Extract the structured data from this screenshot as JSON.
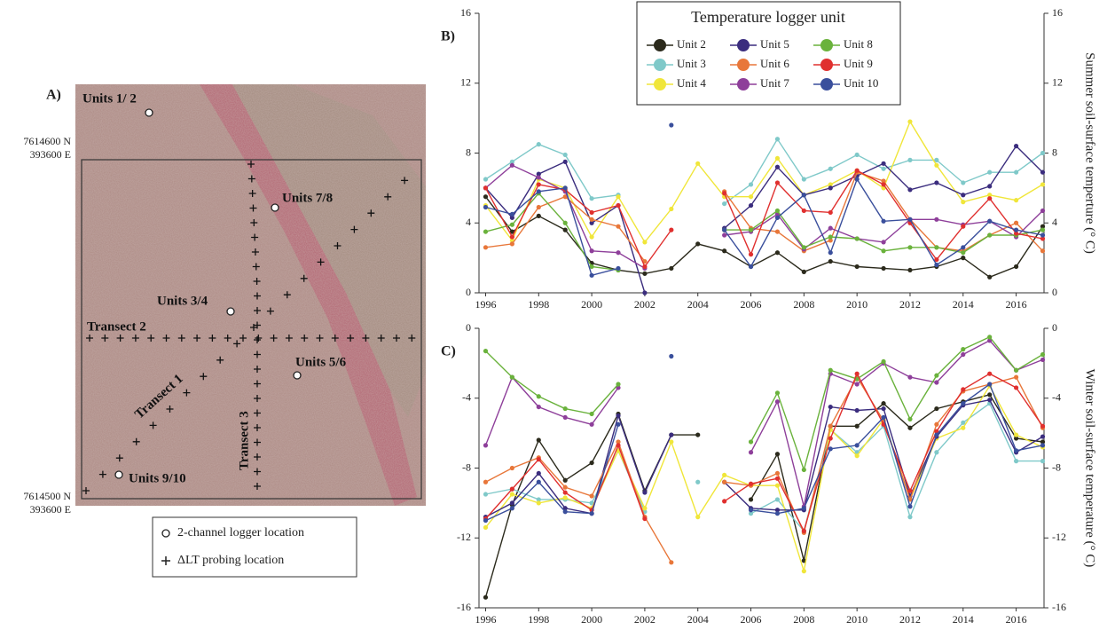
{
  "map": {
    "panel_label": "A)",
    "units": [
      "Units 1/ 2",
      "Units 7/8",
      "Units 3/4",
      "Units 5/6",
      "Units 9/10"
    ],
    "transects": [
      "Transect 2",
      "Transect 1",
      "Transect 3"
    ],
    "top_corner": [
      "7614600 N",
      "393600 E"
    ],
    "bottom_corner": [
      "7614500 N",
      "393600 E"
    ],
    "legend": [
      "2-channel logger location",
      "ΔLT probing location"
    ]
  },
  "chart_data": [
    {
      "type": "line",
      "panel_label": "B)",
      "ylabel": "Summer soil-surface temperture (° C)",
      "legend_title": "Temperature logger unit",
      "x": [
        1996,
        1997,
        1998,
        1999,
        2000,
        2001,
        2002,
        2003,
        2004,
        2005,
        2006,
        2007,
        2008,
        2009,
        2010,
        2011,
        2012,
        2013,
        2014,
        2015,
        2016,
        2017
      ],
      "xlim": [
        1995.75,
        2017.05
      ],
      "xticks": [
        1996,
        1998,
        2000,
        2002,
        2004,
        2006,
        2008,
        2010,
        2012,
        2014,
        2016
      ],
      "ylim": [
        0,
        16
      ],
      "yticks": [
        0,
        4,
        8,
        12,
        16
      ],
      "y2lim": [
        0,
        16
      ],
      "y2ticks": [
        0,
        4,
        8,
        12,
        16
      ],
      "series": [
        {
          "name": "Unit 2",
          "color": "#2b2a1c",
          "values": [
            5.5,
            3.5,
            4.4,
            3.6,
            1.7,
            1.3,
            1.1,
            1.4,
            2.8,
            2.4,
            1.5,
            2.3,
            1.2,
            1.8,
            1.5,
            1.4,
            1.3,
            1.5,
            2.0,
            0.9,
            1.5,
            3.8
          ]
        },
        {
          "name": "Unit 3",
          "color": "#7fc9c9",
          "values": [
            6.5,
            7.5,
            8.5,
            7.9,
            5.4,
            5.6,
            null,
            null,
            null,
            5.1,
            6.2,
            8.8,
            6.5,
            7.1,
            7.9,
            7.1,
            7.6,
            7.6,
            6.3,
            6.9,
            6.9,
            8.0
          ]
        },
        {
          "name": "Unit 4",
          "color": "#f0e63a",
          "values": [
            5.0,
            3.0,
            6.5,
            6.0,
            3.2,
            5.5,
            2.9,
            4.8,
            7.4,
            5.5,
            5.5,
            7.7,
            5.6,
            6.2,
            7.0,
            6.0,
            9.8,
            7.3,
            5.2,
            5.6,
            5.3,
            6.2
          ]
        },
        {
          "name": "Unit 5",
          "color": "#3b2d7e",
          "values": [
            6.0,
            4.3,
            6.8,
            7.5,
            4.0,
            5.0,
            0,
            null,
            null,
            3.7,
            5.0,
            7.2,
            5.6,
            6.0,
            6.7,
            7.4,
            5.9,
            6.3,
            5.6,
            6.1,
            8.4,
            6.9
          ]
        },
        {
          "name": "Unit 6",
          "color": "#e8773a",
          "values": [
            2.6,
            2.8,
            4.9,
            5.5,
            4.2,
            3.8,
            1.8,
            null,
            null,
            5.8,
            3.7,
            3.5,
            2.4,
            3.0,
            6.9,
            6.4,
            4.2,
            2.6,
            2.4,
            3.3,
            4.0,
            2.4
          ]
        },
        {
          "name": "Unit 7",
          "color": "#8e3f9a",
          "values": [
            6.0,
            7.3,
            6.6,
            5.8,
            2.4,
            2.3,
            1.4,
            null,
            null,
            3.3,
            3.5,
            4.5,
            2.5,
            3.7,
            3.1,
            2.9,
            4.2,
            4.2,
            3.9,
            4.1,
            3.2,
            4.7
          ]
        },
        {
          "name": "Unit 8",
          "color": "#6ab23c",
          "values": [
            3.5,
            3.9,
            5.7,
            4.0,
            1.5,
            1.3,
            null,
            null,
            null,
            3.6,
            3.6,
            4.7,
            2.6,
            3.2,
            3.1,
            2.4,
            2.6,
            2.6,
            2.3,
            3.3,
            3.3,
            3.6
          ]
        },
        {
          "name": "Unit 9",
          "color": "#e0302f",
          "values": [
            6.0,
            3.2,
            6.2,
            5.9,
            4.6,
            5.0,
            1.5,
            3.6,
            null,
            5.7,
            2.2,
            6.3,
            4.7,
            4.6,
            7.0,
            6.2,
            4.0,
            1.9,
            3.8,
            5.4,
            3.4,
            3.1
          ]
        },
        {
          "name": "Unit 10",
          "color": "#3a4f9c",
          "values": [
            4.9,
            4.5,
            5.8,
            6.0,
            1.0,
            1.4,
            null,
            9.6,
            null,
            3.6,
            1.5,
            4.3,
            5.6,
            2.3,
            6.5,
            4.1,
            4.2,
            1.6,
            2.6,
            4.1,
            3.6,
            3.3
          ]
        }
      ]
    },
    {
      "type": "line",
      "panel_label": "C)",
      "ylabel": "Winter soil-surface temperature (° C)",
      "x": [
        1996,
        1997,
        1998,
        1999,
        2000,
        2001,
        2002,
        2003,
        2004,
        2005,
        2006,
        2007,
        2008,
        2009,
        2010,
        2011,
        2012,
        2013,
        2014,
        2015,
        2016,
        2017
      ],
      "xlim": [
        1995.75,
        2017.05
      ],
      "xticks": [
        1996,
        1998,
        2000,
        2002,
        2004,
        2006,
        2008,
        2010,
        2012,
        2014,
        2016
      ],
      "ylim": [
        -16,
        0
      ],
      "yticks": [
        -16,
        -12,
        -8,
        -4,
        0
      ],
      "y2lim": [
        -16,
        0
      ],
      "y2ticks": [
        -16,
        -12,
        -8,
        -4,
        0
      ],
      "series": [
        {
          "color": "#2b2a1c",
          "values": [
            -15.4,
            -10.1,
            -6.4,
            -8.7,
            -7.7,
            -4.9,
            -9.3,
            -6.1,
            -6.1,
            null,
            -9.8,
            -7.2,
            -13.3,
            -5.6,
            -5.6,
            -4.3,
            -5.7,
            -4.6,
            -4.2,
            -3.8,
            -6.3,
            -6.5
          ]
        },
        {
          "color": "#7fc9c9",
          "values": [
            -9.5,
            -9.2,
            -9.8,
            -9.8,
            -10.0,
            -7.0,
            -10.5,
            null,
            -8.8,
            null,
            -10.6,
            -9.8,
            -11.6,
            -5.8,
            -7.1,
            -5.6,
            -10.8,
            -7.1,
            -5.4,
            -4.3,
            -7.6,
            -7.6
          ]
        },
        {
          "color": "#f0e63a",
          "values": [
            -11.4,
            -9.5,
            -10.0,
            -9.7,
            -10.3,
            -7.0,
            -10.3,
            -6.5,
            -10.8,
            -8.4,
            -9.0,
            -9.0,
            -13.9,
            -5.8,
            -7.3,
            -5.2,
            -9.8,
            -6.3,
            -5.7,
            -3.3,
            -6.1,
            -6.8
          ]
        },
        {
          "color": "#3b2d7e",
          "values": [
            -10.8,
            -10.0,
            -8.3,
            -10.3,
            -10.6,
            -5.0,
            -9.4,
            -6.1,
            null,
            -8.8,
            -10.3,
            -10.4,
            -10.4,
            -4.5,
            -4.7,
            -4.6,
            -9.6,
            -6.2,
            -4.4,
            -4.1,
            -7.1,
            -6.2
          ]
        },
        {
          "color": "#e8773a",
          "values": [
            -8.8,
            -8.0,
            -7.4,
            -9.1,
            -9.6,
            -6.5,
            -10.8,
            -13.4,
            null,
            -8.8,
            -9.0,
            -8.3,
            -11.7,
            -5.6,
            -2.8,
            -5.3,
            -9.8,
            -5.5,
            -3.6,
            -3.2,
            -2.8,
            -5.7
          ]
        },
        {
          "color": "#8e3f9a",
          "values": [
            -6.7,
            -2.8,
            -4.5,
            -5.1,
            -5.5,
            -3.4,
            null,
            null,
            null,
            null,
            -7.1,
            -4.2,
            -10.2,
            -2.6,
            -3.2,
            -2.0,
            -2.8,
            -3.1,
            -1.5,
            -0.7,
            -2.4,
            -1.8
          ]
        },
        {
          "color": "#6ab23c",
          "values": [
            -1.3,
            -2.8,
            -3.9,
            -4.6,
            -4.9,
            -3.2,
            null,
            null,
            null,
            null,
            -6.5,
            -3.7,
            -8.1,
            -2.4,
            -2.9,
            -1.9,
            -5.2,
            -2.7,
            -1.2,
            -0.5,
            -2.4,
            -1.5
          ]
        },
        {
          "color": "#e0302f",
          "values": [
            -10.9,
            -9.2,
            -7.5,
            -9.4,
            -10.4,
            -6.7,
            -10.9,
            null,
            null,
            -9.9,
            -8.9,
            -8.6,
            -11.6,
            -6.3,
            -2.6,
            -5.5,
            -9.3,
            -5.9,
            -3.5,
            -2.6,
            -3.4,
            -5.6
          ]
        },
        {
          "color": "#3a4f9c",
          "values": [
            -11.0,
            -10.3,
            -8.8,
            -10.5,
            -10.6,
            -5.5,
            null,
            -1.6,
            null,
            null,
            -10.4,
            -10.6,
            -10.3,
            -6.9,
            -6.7,
            -5.1,
            -10.2,
            -6.1,
            -4.3,
            -3.2,
            -7.0,
            -6.7
          ]
        }
      ]
    }
  ]
}
